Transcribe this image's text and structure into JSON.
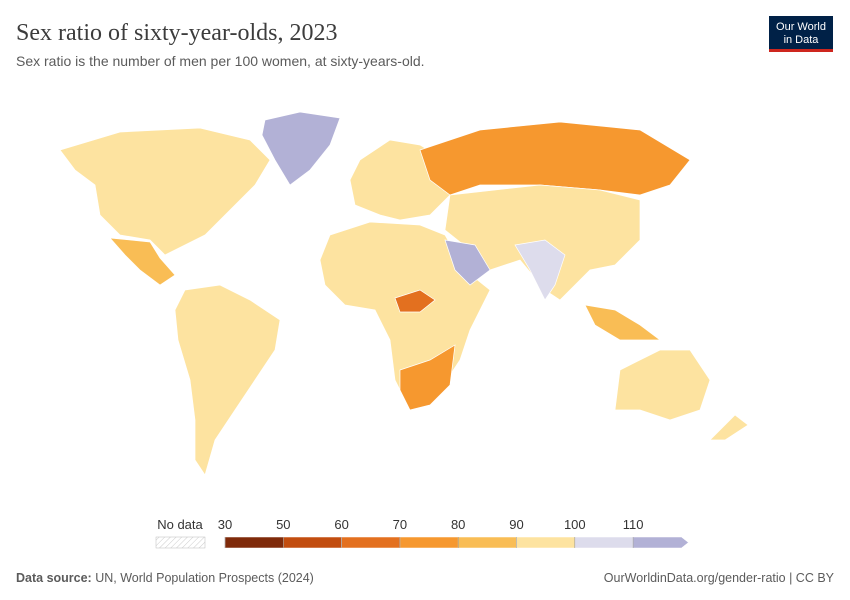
{
  "header": {
    "title": "Sex ratio of sixty-year-olds, 2023",
    "subtitle": "Sex ratio is the number of men per 100 women, at sixty-years-old."
  },
  "logo": {
    "line1": "Our World",
    "line2": "in Data"
  },
  "legend": {
    "no_data_label": "No data",
    "ticks": [
      30,
      50,
      60,
      70,
      80,
      90,
      100,
      110
    ],
    "colors": [
      "#7f2a0a",
      "#c24d0f",
      "#e3701f",
      "#f6982f",
      "#f9bd55",
      "#fde3a0",
      "#dddcec",
      "#b2b1d6"
    ]
  },
  "footer": {
    "source_label": "Data source:",
    "source": "UN, World Population Prospects (2024)",
    "url": "OurWorldinData.org/gender-ratio | CC BY"
  }
}
